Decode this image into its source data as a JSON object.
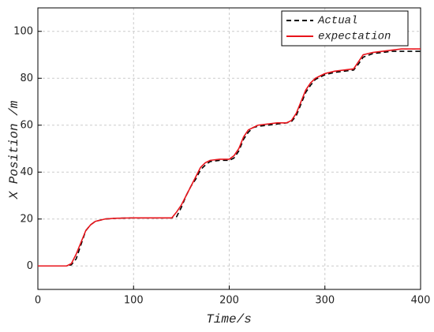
{
  "chart_data": {
    "type": "line",
    "x_label": "Time/s",
    "y_label": "X Position /m",
    "x": [
      0,
      30,
      35,
      40,
      45,
      50,
      55,
      60,
      70,
      80,
      100,
      120,
      140,
      145,
      150,
      155,
      160,
      165,
      170,
      175,
      180,
      190,
      200,
      205,
      210,
      215,
      220,
      225,
      230,
      240,
      250,
      260,
      265,
      270,
      275,
      280,
      285,
      290,
      295,
      300,
      310,
      320,
      330,
      335,
      340,
      350,
      360,
      370,
      380,
      400
    ],
    "series": [
      {
        "name": "Actual",
        "color": "#000000",
        "dash": true,
        "values": [
          0,
          0,
          0.5,
          3,
          9,
          15,
          17.5,
          19,
          20,
          20.3,
          20.5,
          20.5,
          20.5,
          21,
          25,
          30,
          34,
          37,
          41,
          43,
          44.5,
          45,
          45,
          46,
          49,
          54,
          57,
          59,
          59.5,
          60,
          60.5,
          61,
          61.5,
          64,
          69,
          74,
          77,
          79.5,
          80.5,
          81.5,
          82.5,
          83,
          83.5,
          86,
          89,
          90.5,
          91,
          91.5,
          91.5,
          91.5
        ]
      },
      {
        "name": "expectation",
        "color": "#e8141b",
        "dash": false,
        "values": [
          0,
          0,
          1,
          5,
          10,
          15,
          17.5,
          19,
          20,
          20.3,
          20.5,
          20.5,
          20.5,
          23,
          26,
          30,
          34,
          38,
          42,
          44,
          45,
          45.5,
          45.5,
          47,
          50,
          55,
          58,
          59,
          60,
          60.5,
          61,
          61,
          62,
          65,
          70,
          75,
          78,
          80,
          81,
          82,
          83,
          83.5,
          84,
          87,
          90,
          91,
          91.5,
          92,
          92.5,
          92.5
        ]
      }
    ],
    "xlim": [
      0,
      400
    ],
    "xticks": [
      0,
      100,
      200,
      300,
      400
    ],
    "ylim": [
      -10,
      110
    ],
    "yticks": [
      0,
      20,
      40,
      60,
      80,
      100
    ],
    "grid": true,
    "legend": "top-right"
  }
}
